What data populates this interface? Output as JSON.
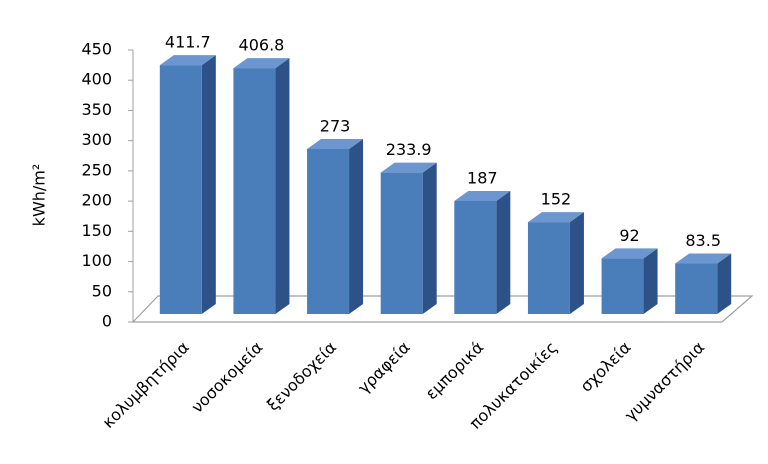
{
  "chart_data": {
    "type": "bar3d",
    "y_label": "kWh/m²",
    "categories": [
      "κολυμβητήρια",
      "νοσοκομεία",
      "ξενοδοχεία",
      "γραφεία",
      "εμπορικά",
      "πολυκατοικίες",
      "σχολεία",
      "γυμναστήρια"
    ],
    "values": [
      411.7,
      406.8,
      273,
      233.9,
      187,
      152,
      92,
      83.5
    ],
    "color": "#4a7ebb",
    "ylim": [
      0,
      450
    ],
    "yticks": [
      0,
      50,
      100,
      150,
      200,
      250,
      300,
      350,
      400,
      450
    ]
  }
}
